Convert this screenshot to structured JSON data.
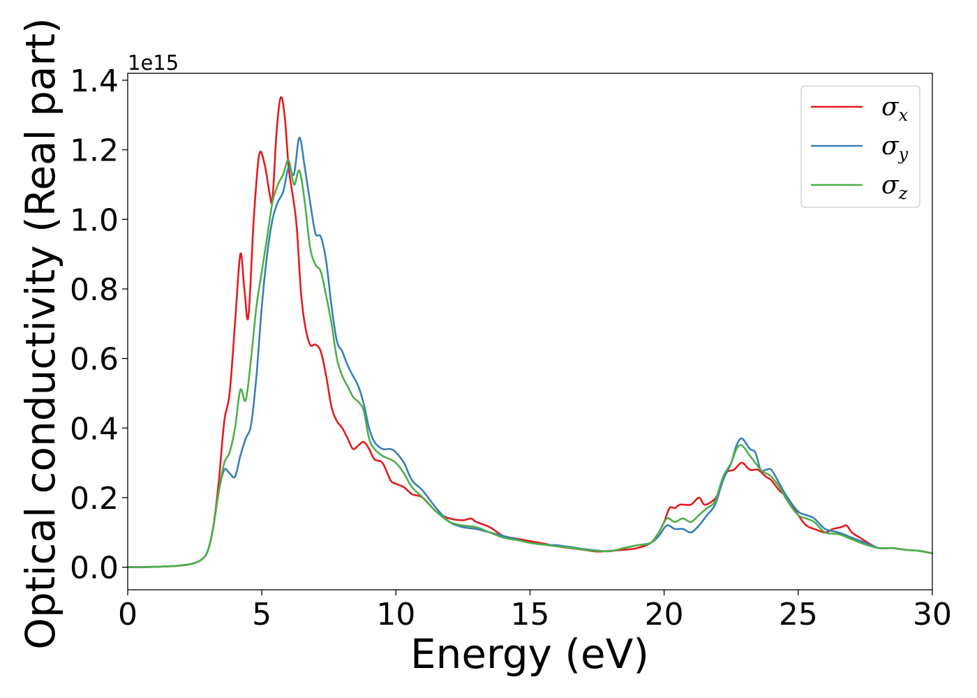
{
  "chart_data": {
    "type": "line",
    "xlabel": "Energy (eV)",
    "ylabel": "Optical conductivity (Real part)",
    "y_offset_label": "1e15",
    "xlim": [
      0,
      30
    ],
    "ylim": [
      -0.065,
      1.42
    ],
    "x_ticks": [
      0,
      5,
      10,
      15,
      20,
      25,
      30
    ],
    "x_tick_labels": [
      "0",
      "5",
      "10",
      "15",
      "20",
      "25",
      "30"
    ],
    "y_ticks": [
      0.0,
      0.2,
      0.4,
      0.6,
      0.8,
      1.0,
      1.2,
      1.4
    ],
    "y_tick_labels": [
      "0.0",
      "0.2",
      "0.4",
      "0.6",
      "0.8",
      "1.0",
      "1.2",
      "1.4"
    ],
    "grid": false,
    "legend_position": "top-right",
    "series": [
      {
        "name": "σx",
        "symbol": "σ",
        "sub": "x",
        "color": "#e41a1c",
        "points": [
          [
            0,
            0
          ],
          [
            1,
            0.001
          ],
          [
            2,
            0.005
          ],
          [
            2.5,
            0.012
          ],
          [
            2.8,
            0.025
          ],
          [
            3.0,
            0.05
          ],
          [
            3.2,
            0.12
          ],
          [
            3.4,
            0.25
          ],
          [
            3.6,
            0.42
          ],
          [
            3.8,
            0.5
          ],
          [
            4.0,
            0.7
          ],
          [
            4.2,
            0.9
          ],
          [
            4.35,
            0.8
          ],
          [
            4.5,
            0.72
          ],
          [
            4.7,
            1.0
          ],
          [
            4.9,
            1.185
          ],
          [
            5.1,
            1.16
          ],
          [
            5.3,
            1.07
          ],
          [
            5.4,
            1.06
          ],
          [
            5.55,
            1.25
          ],
          [
            5.7,
            1.35
          ],
          [
            5.85,
            1.3
          ],
          [
            6.0,
            1.15
          ],
          [
            6.15,
            1.07
          ],
          [
            6.3,
            0.98
          ],
          [
            6.45,
            0.8
          ],
          [
            6.6,
            0.7
          ],
          [
            6.8,
            0.64
          ],
          [
            7.0,
            0.64
          ],
          [
            7.2,
            0.62
          ],
          [
            7.4,
            0.55
          ],
          [
            7.6,
            0.46
          ],
          [
            7.8,
            0.42
          ],
          [
            8.0,
            0.4
          ],
          [
            8.2,
            0.37
          ],
          [
            8.4,
            0.34
          ],
          [
            8.6,
            0.35
          ],
          [
            8.8,
            0.36
          ],
          [
            9.0,
            0.34
          ],
          [
            9.2,
            0.31
          ],
          [
            9.5,
            0.3
          ],
          [
            9.8,
            0.25
          ],
          [
            10.0,
            0.24
          ],
          [
            10.3,
            0.23
          ],
          [
            10.6,
            0.21
          ],
          [
            11.0,
            0.2
          ],
          [
            11.5,
            0.16
          ],
          [
            12.0,
            0.14
          ],
          [
            12.5,
            0.135
          ],
          [
            12.8,
            0.14
          ],
          [
            13.0,
            0.13
          ],
          [
            13.5,
            0.115
          ],
          [
            14,
            0.09
          ],
          [
            14.5,
            0.082
          ],
          [
            15,
            0.075
          ],
          [
            15.5,
            0.068
          ],
          [
            16,
            0.06
          ],
          [
            16.5,
            0.055
          ],
          [
            17,
            0.05
          ],
          [
            17.5,
            0.045
          ],
          [
            18,
            0.047
          ],
          [
            18.5,
            0.05
          ],
          [
            19,
            0.055
          ],
          [
            19.5,
            0.07
          ],
          [
            19.8,
            0.1
          ],
          [
            20.0,
            0.13
          ],
          [
            20.2,
            0.17
          ],
          [
            20.4,
            0.17
          ],
          [
            20.6,
            0.18
          ],
          [
            21.0,
            0.18
          ],
          [
            21.3,
            0.2
          ],
          [
            21.5,
            0.18
          ],
          [
            21.8,
            0.19
          ],
          [
            22.0,
            0.21
          ],
          [
            22.3,
            0.27
          ],
          [
            22.6,
            0.28
          ],
          [
            22.9,
            0.3
          ],
          [
            23.2,
            0.28
          ],
          [
            23.5,
            0.28
          ],
          [
            23.8,
            0.26
          ],
          [
            24.0,
            0.25
          ],
          [
            24.3,
            0.22
          ],
          [
            24.6,
            0.2
          ],
          [
            25.0,
            0.15
          ],
          [
            25.3,
            0.12
          ],
          [
            25.6,
            0.11
          ],
          [
            26.0,
            0.1
          ],
          [
            26.3,
            0.11
          ],
          [
            26.6,
            0.115
          ],
          [
            26.8,
            0.12
          ],
          [
            27.0,
            0.1
          ],
          [
            27.3,
            0.085
          ],
          [
            27.6,
            0.07
          ],
          [
            28,
            0.055
          ],
          [
            28.5,
            0.055
          ],
          [
            29,
            0.05
          ],
          [
            29.5,
            0.047
          ],
          [
            30,
            0.04
          ]
        ]
      },
      {
        "name": "σy",
        "symbol": "σ",
        "sub": "y",
        "color": "#377eb8",
        "points": [
          [
            0,
            0
          ],
          [
            1,
            0.001
          ],
          [
            2,
            0.005
          ],
          [
            2.5,
            0.012
          ],
          [
            2.8,
            0.025
          ],
          [
            3.0,
            0.05
          ],
          [
            3.2,
            0.12
          ],
          [
            3.4,
            0.22
          ],
          [
            3.6,
            0.28
          ],
          [
            3.8,
            0.27
          ],
          [
            4.0,
            0.26
          ],
          [
            4.2,
            0.32
          ],
          [
            4.4,
            0.37
          ],
          [
            4.6,
            0.41
          ],
          [
            4.8,
            0.55
          ],
          [
            5.0,
            0.75
          ],
          [
            5.2,
            0.9
          ],
          [
            5.4,
            1.0
          ],
          [
            5.6,
            1.05
          ],
          [
            5.8,
            1.08
          ],
          [
            6.0,
            1.15
          ],
          [
            6.2,
            1.13
          ],
          [
            6.4,
            1.235
          ],
          [
            6.6,
            1.15
          ],
          [
            6.8,
            1.05
          ],
          [
            7.0,
            0.96
          ],
          [
            7.2,
            0.95
          ],
          [
            7.4,
            0.88
          ],
          [
            7.6,
            0.75
          ],
          [
            7.8,
            0.65
          ],
          [
            8.0,
            0.62
          ],
          [
            8.2,
            0.58
          ],
          [
            8.4,
            0.55
          ],
          [
            8.6,
            0.52
          ],
          [
            8.8,
            0.47
          ],
          [
            9.0,
            0.4
          ],
          [
            9.2,
            0.36
          ],
          [
            9.5,
            0.34
          ],
          [
            9.8,
            0.34
          ],
          [
            10.0,
            0.33
          ],
          [
            10.3,
            0.3
          ],
          [
            10.6,
            0.25
          ],
          [
            11.0,
            0.22
          ],
          [
            11.5,
            0.17
          ],
          [
            12.0,
            0.13
          ],
          [
            12.5,
            0.115
          ],
          [
            13,
            0.11
          ],
          [
            13.5,
            0.1
          ],
          [
            14,
            0.09
          ],
          [
            14.5,
            0.08
          ],
          [
            15,
            0.07
          ],
          [
            15.5,
            0.065
          ],
          [
            16,
            0.063
          ],
          [
            16.5,
            0.058
          ],
          [
            17,
            0.052
          ],
          [
            17.5,
            0.048
          ],
          [
            18,
            0.046
          ],
          [
            18.5,
            0.055
          ],
          [
            19,
            0.063
          ],
          [
            19.5,
            0.07
          ],
          [
            19.8,
            0.09
          ],
          [
            20.1,
            0.12
          ],
          [
            20.4,
            0.11
          ],
          [
            20.7,
            0.11
          ],
          [
            21.0,
            0.1
          ],
          [
            21.3,
            0.12
          ],
          [
            21.6,
            0.15
          ],
          [
            21.9,
            0.18
          ],
          [
            22.2,
            0.25
          ],
          [
            22.5,
            0.3
          ],
          [
            22.7,
            0.35
          ],
          [
            22.9,
            0.37
          ],
          [
            23.2,
            0.34
          ],
          [
            23.4,
            0.33
          ],
          [
            23.6,
            0.28
          ],
          [
            23.8,
            0.28
          ],
          [
            24.0,
            0.28
          ],
          [
            24.3,
            0.24
          ],
          [
            24.6,
            0.2
          ],
          [
            25.0,
            0.16
          ],
          [
            25.3,
            0.15
          ],
          [
            25.6,
            0.14
          ],
          [
            26.0,
            0.11
          ],
          [
            26.5,
            0.1
          ],
          [
            27.0,
            0.085
          ],
          [
            27.5,
            0.07
          ],
          [
            28,
            0.055
          ],
          [
            28.5,
            0.055
          ],
          [
            29,
            0.05
          ],
          [
            29.5,
            0.047
          ],
          [
            30,
            0.04
          ]
        ]
      },
      {
        "name": "σz",
        "symbol": "σ",
        "sub": "z",
        "color": "#4daf4a",
        "points": [
          [
            0,
            0
          ],
          [
            1,
            0.001
          ],
          [
            2,
            0.005
          ],
          [
            2.5,
            0.012
          ],
          [
            2.8,
            0.025
          ],
          [
            3.0,
            0.05
          ],
          [
            3.2,
            0.12
          ],
          [
            3.4,
            0.22
          ],
          [
            3.6,
            0.3
          ],
          [
            3.8,
            0.33
          ],
          [
            4.0,
            0.4
          ],
          [
            4.2,
            0.51
          ],
          [
            4.4,
            0.48
          ],
          [
            4.6,
            0.6
          ],
          [
            4.8,
            0.75
          ],
          [
            5.0,
            0.85
          ],
          [
            5.2,
            0.95
          ],
          [
            5.4,
            1.05
          ],
          [
            5.6,
            1.1
          ],
          [
            5.8,
            1.13
          ],
          [
            6.0,
            1.17
          ],
          [
            6.2,
            1.1
          ],
          [
            6.4,
            1.14
          ],
          [
            6.6,
            1.05
          ],
          [
            6.8,
            0.92
          ],
          [
            7.0,
            0.87
          ],
          [
            7.2,
            0.85
          ],
          [
            7.4,
            0.78
          ],
          [
            7.6,
            0.7
          ],
          [
            7.8,
            0.6
          ],
          [
            8.0,
            0.55
          ],
          [
            8.2,
            0.52
          ],
          [
            8.4,
            0.49
          ],
          [
            8.6,
            0.475
          ],
          [
            8.8,
            0.45
          ],
          [
            9.0,
            0.37
          ],
          [
            9.2,
            0.34
          ],
          [
            9.5,
            0.32
          ],
          [
            9.8,
            0.31
          ],
          [
            10.0,
            0.3
          ],
          [
            10.3,
            0.27
          ],
          [
            10.6,
            0.23
          ],
          [
            11.0,
            0.2
          ],
          [
            11.5,
            0.16
          ],
          [
            12.0,
            0.13
          ],
          [
            12.5,
            0.12
          ],
          [
            13,
            0.115
          ],
          [
            13.5,
            0.1
          ],
          [
            14,
            0.085
          ],
          [
            14.5,
            0.078
          ],
          [
            15,
            0.07
          ],
          [
            15.5,
            0.065
          ],
          [
            16,
            0.06
          ],
          [
            16.5,
            0.056
          ],
          [
            17,
            0.05
          ],
          [
            17.5,
            0.047
          ],
          [
            18,
            0.046
          ],
          [
            18.5,
            0.055
          ],
          [
            19,
            0.063
          ],
          [
            19.5,
            0.07
          ],
          [
            19.8,
            0.1
          ],
          [
            20.1,
            0.14
          ],
          [
            20.4,
            0.13
          ],
          [
            20.7,
            0.14
          ],
          [
            21.0,
            0.13
          ],
          [
            21.3,
            0.15
          ],
          [
            21.6,
            0.17
          ],
          [
            21.9,
            0.19
          ],
          [
            22.2,
            0.26
          ],
          [
            22.5,
            0.3
          ],
          [
            22.7,
            0.34
          ],
          [
            22.9,
            0.35
          ],
          [
            23.2,
            0.32
          ],
          [
            23.4,
            0.3
          ],
          [
            23.6,
            0.28
          ],
          [
            23.8,
            0.27
          ],
          [
            24.0,
            0.26
          ],
          [
            24.3,
            0.23
          ],
          [
            24.6,
            0.19
          ],
          [
            25.0,
            0.15
          ],
          [
            25.3,
            0.14
          ],
          [
            25.6,
            0.13
          ],
          [
            26.0,
            0.1
          ],
          [
            26.5,
            0.095
          ],
          [
            27.0,
            0.08
          ],
          [
            27.5,
            0.065
          ],
          [
            28,
            0.055
          ],
          [
            28.5,
            0.055
          ],
          [
            29,
            0.05
          ],
          [
            29.5,
            0.047
          ],
          [
            30,
            0.04
          ]
        ]
      }
    ]
  }
}
